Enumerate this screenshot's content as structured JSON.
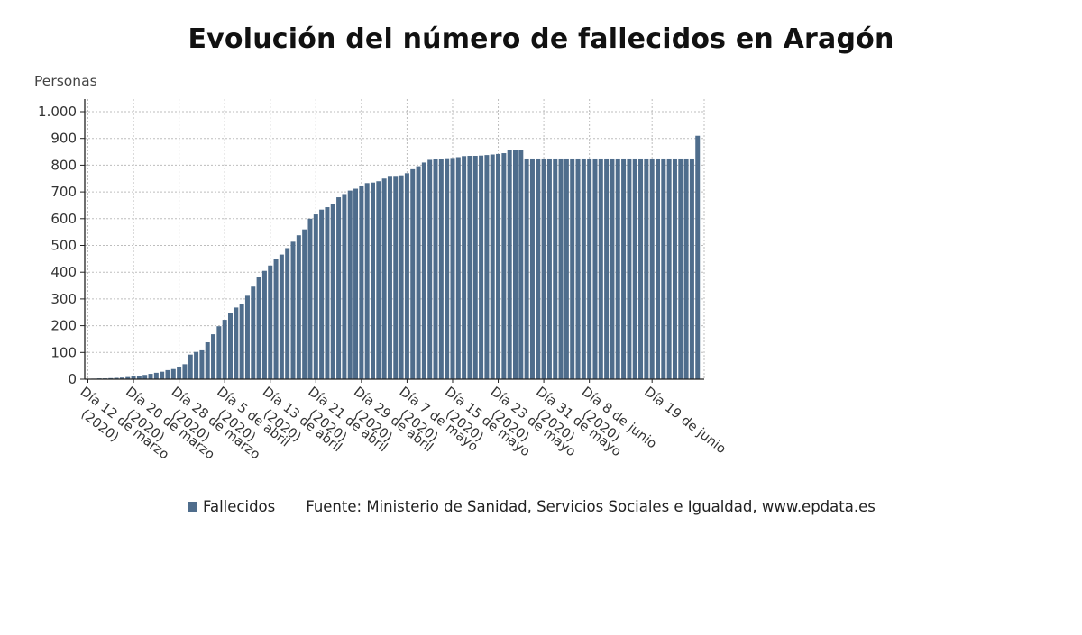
{
  "chart_data": {
    "type": "bar",
    "title": "Evolución del número de fallecidos en Aragón",
    "ylabel": "Personas",
    "xlabel": "",
    "ylim": [
      0,
      1000
    ],
    "yticks": [
      {
        "value": 0,
        "label": "0"
      },
      {
        "value": 100,
        "label": "100"
      },
      {
        "value": 200,
        "label": "200"
      },
      {
        "value": 300,
        "label": "300"
      },
      {
        "value": 400,
        "label": "400"
      },
      {
        "value": 500,
        "label": "500"
      },
      {
        "value": 600,
        "label": "600"
      },
      {
        "value": 700,
        "label": "700"
      },
      {
        "value": 800,
        "label": "800"
      },
      {
        "value": 900,
        "label": "900"
      },
      {
        "value": 1000,
        "label": "1.000"
      }
    ],
    "grid": true,
    "legend_position": "bottom",
    "bar_color": "#4f6d8c",
    "series": [
      {
        "name": "Fallecidos",
        "start": "2020-03-12",
        "values": [
          1,
          2,
          3,
          3,
          4,
          5,
          6,
          8,
          10,
          13,
          16,
          20,
          24,
          28,
          34,
          38,
          44,
          56,
          92,
          102,
          108,
          138,
          168,
          198,
          222,
          248,
          268,
          282,
          312,
          346,
          382,
          405,
          425,
          450,
          466,
          490,
          514,
          538,
          560,
          600,
          616,
          634,
          643,
          655,
          680,
          692,
          705,
          712,
          724,
          733,
          735,
          740,
          750,
          760,
          760,
          762,
          770,
          785,
          796,
          810,
          820,
          822,
          824,
          826,
          827,
          830,
          834,
          835,
          835,
          836,
          838,
          840,
          842,
          845,
          856,
          856,
          857,
          825,
          825,
          825,
          825,
          825,
          825,
          825,
          825,
          825,
          825,
          825,
          825,
          825,
          825,
          825,
          825,
          825,
          825,
          825,
          825,
          825,
          825,
          825,
          825,
          825,
          825,
          825,
          825,
          825,
          825,
          910
        ]
      }
    ],
    "x_ticks": [
      {
        "date": "2020-03-12",
        "lines": [
          "Día 12 de marzo",
          "(2020)"
        ]
      },
      {
        "date": "2020-03-20",
        "lines": [
          "Día 20 de marzo",
          "(2020)"
        ]
      },
      {
        "date": "2020-03-28",
        "lines": [
          "Día 28 de marzo",
          "(2020)"
        ]
      },
      {
        "date": "2020-04-05",
        "lines": [
          "Día 5 de abril",
          "(2020)"
        ]
      },
      {
        "date": "2020-04-13",
        "lines": [
          "Día 13 de abril",
          "(2020)"
        ]
      },
      {
        "date": "2020-04-21",
        "lines": [
          "Día 21 de abril",
          "(2020)"
        ]
      },
      {
        "date": "2020-04-29",
        "lines": [
          "Día 29 de abril",
          "(2020)"
        ]
      },
      {
        "date": "2020-05-07",
        "lines": [
          "Día 7 de mayo",
          "(2020)"
        ]
      },
      {
        "date": "2020-05-15",
        "lines": [
          "Día 15 de mayo",
          "(2020)"
        ]
      },
      {
        "date": "2020-05-23",
        "lines": [
          "Día 23 de mayo",
          "(2020)"
        ]
      },
      {
        "date": "2020-05-31",
        "lines": [
          "Día 31 de mayo",
          "(2020)"
        ]
      },
      {
        "date": "2020-06-08",
        "lines": [
          "Día 8 de junio",
          "(2020)"
        ]
      },
      {
        "date": "2020-06-19",
        "lines": [
          "Día 19 de junio"
        ]
      }
    ]
  },
  "legend": {
    "series_label": "Fallecidos",
    "source": "Fuente: Ministerio de Sanidad, Servicios Sociales e Igualdad, www.epdata.es"
  }
}
